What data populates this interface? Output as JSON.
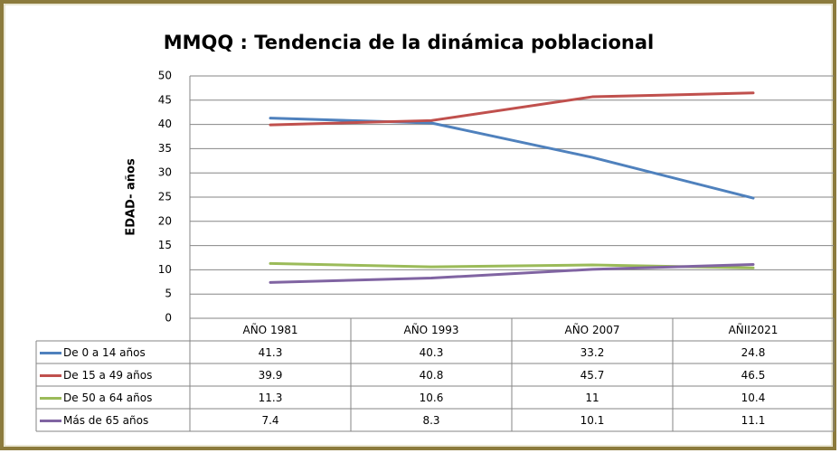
{
  "chart_data": {
    "type": "line",
    "title": "MMQQ : Tendencia de la dinámica poblacional",
    "y_label": "EDAD- años",
    "categories": [
      "AÑO 1981",
      "AÑO 1993",
      "AÑO 2007",
      "AÑII2021"
    ],
    "series": [
      {
        "name": "De 0 a 14 años",
        "color": "#4f81bd",
        "values": [
          41.3,
          40.3,
          33.2,
          24.8
        ]
      },
      {
        "name": "De 15 a 49 años",
        "color": "#c0504d",
        "values": [
          39.9,
          40.8,
          45.7,
          46.5
        ]
      },
      {
        "name": "De 50 a 64  años",
        "color": "#9bbb59",
        "values": [
          11.3,
          10.6,
          11,
          10.4
        ]
      },
      {
        "name": "Más de 65 años",
        "color": "#8064a2",
        "values": [
          7.4,
          8.3,
          10.1,
          11.1
        ]
      }
    ],
    "ylim": [
      0,
      50
    ],
    "yticks": [
      0,
      5,
      10,
      15,
      20,
      25,
      30,
      35,
      40,
      45,
      50
    ],
    "grid": true
  }
}
